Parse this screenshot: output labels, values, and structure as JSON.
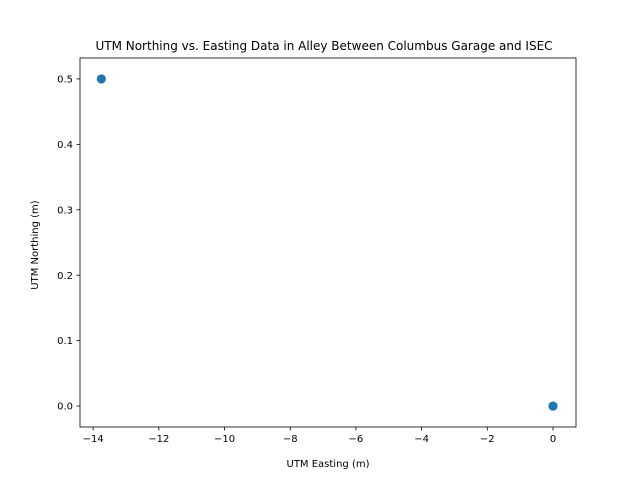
{
  "chart_data": {
    "type": "scatter",
    "title": "UTM Northing vs. Easting Data in Alley Between Columbus Garage and ISEC",
    "xlabel": "UTM Easting (m)",
    "ylabel": "UTM Northing (m)",
    "xlim": [
      -14.4,
      0.7
    ],
    "ylim": [
      -0.032,
      0.532
    ],
    "xticks": [
      -14,
      -12,
      -10,
      -8,
      -6,
      -4,
      -2,
      0
    ],
    "xtick_labels": [
      "−14",
      "−12",
      "−10",
      "−8",
      "−6",
      "−4",
      "−2",
      "0"
    ],
    "yticks": [
      0.0,
      0.1,
      0.2,
      0.3,
      0.4,
      0.5
    ],
    "ytick_labels": [
      "0.0",
      "0.1",
      "0.2",
      "0.3",
      "0.4",
      "0.5"
    ],
    "grid": false,
    "series": [
      {
        "color": "#1f77b4",
        "points": [
          {
            "x": -13.75,
            "y": 0.5
          },
          {
            "x": 0.0,
            "y": 0.0
          }
        ]
      }
    ]
  }
}
